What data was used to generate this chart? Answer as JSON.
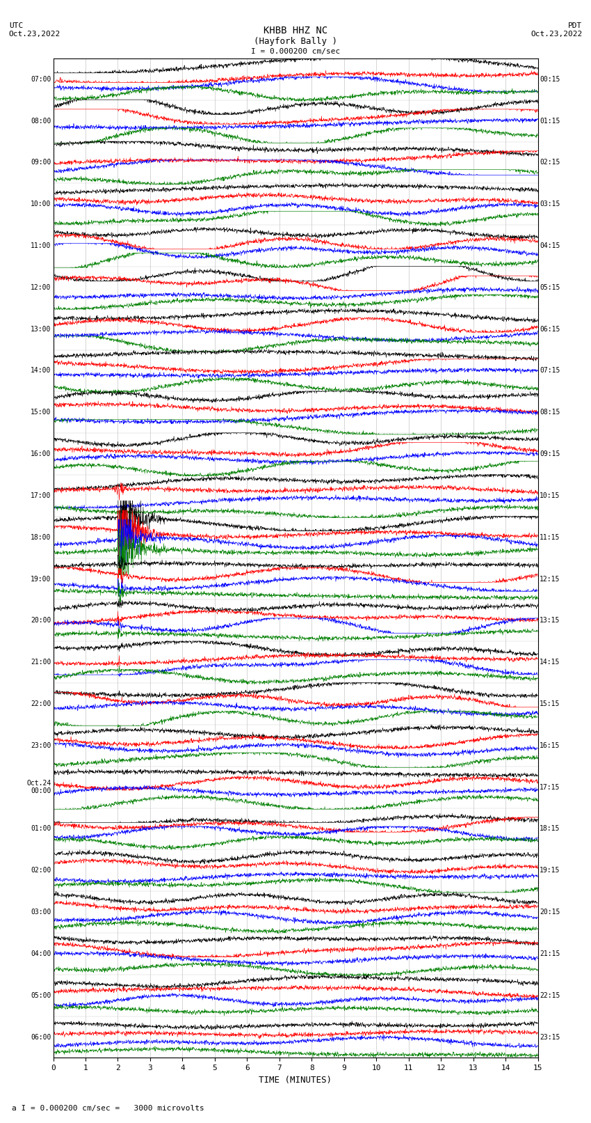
{
  "title_line1": "KHBB HHZ NC",
  "title_line2": "(Hayfork Bally )",
  "scale_label": "I = 0.000200 cm/sec",
  "bottom_label": "a I = 0.000200 cm/sec =   3000 microvolts",
  "xlabel": "TIME (MINUTES)",
  "left_times_utc": [
    "07:00",
    "08:00",
    "09:00",
    "10:00",
    "11:00",
    "12:00",
    "13:00",
    "14:00",
    "15:00",
    "16:00",
    "17:00",
    "18:00",
    "19:00",
    "20:00",
    "21:00",
    "22:00",
    "23:00",
    "Oct.24\n00:00",
    "01:00",
    "02:00",
    "03:00",
    "04:00",
    "05:00",
    "06:00"
  ],
  "right_times_pdt": [
    "00:15",
    "01:15",
    "02:15",
    "03:15",
    "04:15",
    "05:15",
    "06:15",
    "07:15",
    "08:15",
    "09:15",
    "10:15",
    "11:15",
    "12:15",
    "13:15",
    "14:15",
    "15:15",
    "16:15",
    "17:15",
    "18:15",
    "19:15",
    "20:15",
    "21:15",
    "22:15",
    "23:15"
  ],
  "n_rows": 24,
  "n_minutes": 15,
  "colors": [
    "black",
    "red",
    "blue",
    "green"
  ],
  "background_color": "white",
  "earthquake_row": 11,
  "earthquake_minute": 2.05,
  "seed": 12345
}
